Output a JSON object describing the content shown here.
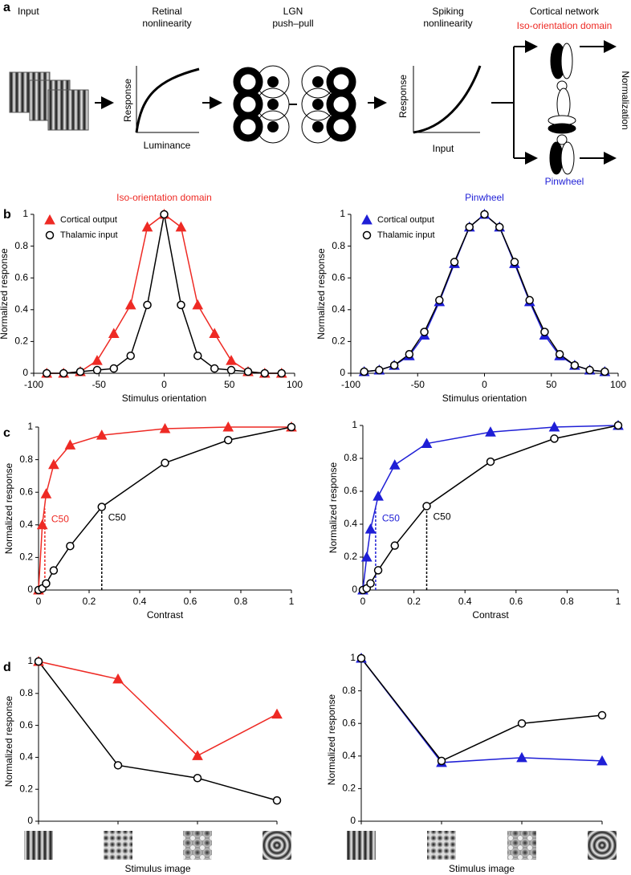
{
  "panel_labels": [
    "a",
    "b",
    "c",
    "d"
  ],
  "diagram": {
    "input": "Input",
    "retinal": {
      "title": [
        "Retinal",
        "nonlinearity"
      ],
      "ylabel": "Response",
      "xlabel": "Luminance"
    },
    "lgn": {
      "title": [
        "LGN",
        "push–pull"
      ]
    },
    "spiking": {
      "title": [
        "Spiking",
        "nonlinearity"
      ],
      "ylabel": "Response",
      "xlabel": "Input"
    },
    "cortical": {
      "title": "Cortical network",
      "top": "Iso-orientation domain",
      "bottom": "Pinwheel",
      "side": "Normalization"
    }
  },
  "chart_data": [
    {
      "type": "line",
      "title": "Iso-orientation domain",
      "title_color": "#ee2a24",
      "xlabel": "Stimulus orientation",
      "ylabel": "Normalized response",
      "x": [
        -90,
        -77.1,
        -64.3,
        -51.4,
        -38.6,
        -25.7,
        -12.9,
        0,
        12.9,
        25.7,
        38.6,
        51.4,
        64.3,
        77.1,
        90
      ],
      "series": [
        {
          "name": "Cortical output",
          "color": "#ee2a24",
          "marker": "triangle",
          "values": [
            0,
            0,
            0.01,
            0.08,
            0.25,
            0.43,
            0.92,
            1,
            0.92,
            0.43,
            0.25,
            0.08,
            0.01,
            0,
            0
          ]
        },
        {
          "name": "Thalamic input",
          "color": "#000000",
          "marker": "circle",
          "values": [
            0,
            0,
            0.01,
            0.02,
            0.03,
            0.11,
            0.43,
            1,
            0.43,
            0.11,
            0.03,
            0.02,
            0.01,
            0,
            0
          ]
        }
      ],
      "xlim": [
        -100,
        100
      ],
      "xticks": [
        -100,
        -50,
        0,
        50,
        100
      ],
      "ylim": [
        0,
        1
      ],
      "yticks": [
        0,
        0.2,
        0.4,
        0.6,
        0.8,
        1
      ],
      "legend": "upper left"
    },
    {
      "type": "line",
      "title": "Pinwheel",
      "title_color": "#1f1fd6",
      "xlabel": "Stimulus orientation",
      "ylabel": "Normalized response",
      "x": [
        -90,
        -78.75,
        -67.5,
        -56.25,
        -45,
        -33.75,
        -22.5,
        -11.25,
        0,
        11.25,
        22.5,
        33.75,
        45,
        56.25,
        67.5,
        78.75,
        90
      ],
      "series": [
        {
          "name": "Cortical output",
          "color": "#1f1fd6",
          "marker": "triangle",
          "values": [
            0.01,
            0.02,
            0.05,
            0.11,
            0.24,
            0.45,
            0.69,
            0.92,
            1,
            0.92,
            0.69,
            0.45,
            0.24,
            0.11,
            0.05,
            0.02,
            0.01
          ]
        },
        {
          "name": "Thalamic input",
          "color": "#000000",
          "marker": "circle",
          "values": [
            0.01,
            0.02,
            0.05,
            0.12,
            0.26,
            0.46,
            0.7,
            0.92,
            1,
            0.92,
            0.7,
            0.46,
            0.26,
            0.12,
            0.05,
            0.02,
            0.01
          ]
        }
      ],
      "xlim": [
        -100,
        100
      ],
      "xticks": [
        -100,
        -50,
        0,
        50,
        100
      ],
      "ylim": [
        0,
        1
      ],
      "yticks": [
        0,
        0.2,
        0.4,
        0.6,
        0.8,
        1
      ],
      "legend": "upper left"
    },
    {
      "type": "line",
      "xlabel": "Contrast",
      "ylabel": "Normalized response",
      "x": [
        0,
        0.015,
        0.03,
        0.06,
        0.125,
        0.25,
        0.5,
        0.75,
        1
      ],
      "series": [
        {
          "color": "#ee2a24",
          "marker": "triangle",
          "values": [
            0,
            0.4,
            0.59,
            0.77,
            0.89,
            0.95,
            0.99,
            1,
            1
          ]
        },
        {
          "color": "#000000",
          "marker": "circle",
          "values": [
            0,
            0.01,
            0.04,
            0.12,
            0.27,
            0.51,
            0.78,
            0.92,
            1
          ]
        }
      ],
      "annotations": [
        {
          "text": "C50",
          "x": 0.025,
          "y": 0.5,
          "color": "#ee2a24"
        },
        {
          "text": "C50",
          "x": 0.25,
          "y": 0.51,
          "color": "#000000"
        }
      ],
      "xlim": [
        0,
        1
      ],
      "xticks": [
        0,
        0.2,
        0.4,
        0.6,
        0.8,
        1
      ],
      "ylim": [
        0,
        1
      ],
      "yticks": [
        0,
        0.2,
        0.4,
        0.6,
        0.8,
        1
      ]
    },
    {
      "type": "line",
      "xlabel": "Contrast",
      "ylabel": "Normalized response",
      "x": [
        0,
        0.015,
        0.03,
        0.06,
        0.125,
        0.25,
        0.5,
        0.75,
        1
      ],
      "series": [
        {
          "color": "#1f1fd6",
          "marker": "triangle",
          "values": [
            0,
            0.2,
            0.37,
            0.57,
            0.76,
            0.89,
            0.96,
            0.99,
            1
          ]
        },
        {
          "color": "#000000",
          "marker": "circle",
          "values": [
            0,
            0.01,
            0.04,
            0.12,
            0.27,
            0.51,
            0.78,
            0.92,
            1
          ]
        }
      ],
      "annotations": [
        {
          "text": "C50",
          "x": 0.05,
          "y": 0.5,
          "color": "#1f1fd6"
        },
        {
          "text": "C50",
          "x": 0.25,
          "y": 0.51,
          "color": "#000000"
        }
      ],
      "xlim": [
        0,
        1
      ],
      "xticks": [
        0,
        0.2,
        0.4,
        0.6,
        0.8,
        1
      ],
      "ylim": [
        0,
        1
      ],
      "yticks": [
        0,
        0.2,
        0.4,
        0.6,
        0.8,
        1
      ]
    },
    {
      "type": "line",
      "xlabel": "Stimulus image",
      "ylabel": "Normalized response",
      "categories": [
        null,
        null,
        null,
        null
      ],
      "series": [
        {
          "color": "#ee2a24",
          "marker": "triangle",
          "values": [
            1,
            0.89,
            0.41,
            0.67
          ]
        },
        {
          "color": "#000000",
          "marker": "circle",
          "values": [
            1,
            0.35,
            0.27,
            0.13
          ]
        }
      ],
      "ylim": [
        0,
        1
      ],
      "yticks": [
        0,
        0.2,
        0.4,
        0.6,
        0.8,
        1
      ]
    },
    {
      "type": "line",
      "xlabel": "Stimulus image",
      "ylabel": "Normalized response",
      "categories": [
        null,
        null,
        null,
        null
      ],
      "series": [
        {
          "color": "#1f1fd6",
          "marker": "triangle",
          "values": [
            1,
            0.36,
            0.39,
            0.37
          ]
        },
        {
          "color": "#000000",
          "marker": "circle",
          "values": [
            1,
            0.37,
            0.6,
            0.65
          ]
        }
      ],
      "ylim": [
        0,
        1
      ],
      "yticks": [
        0,
        0.2,
        0.4,
        0.6,
        0.8,
        1
      ]
    }
  ]
}
